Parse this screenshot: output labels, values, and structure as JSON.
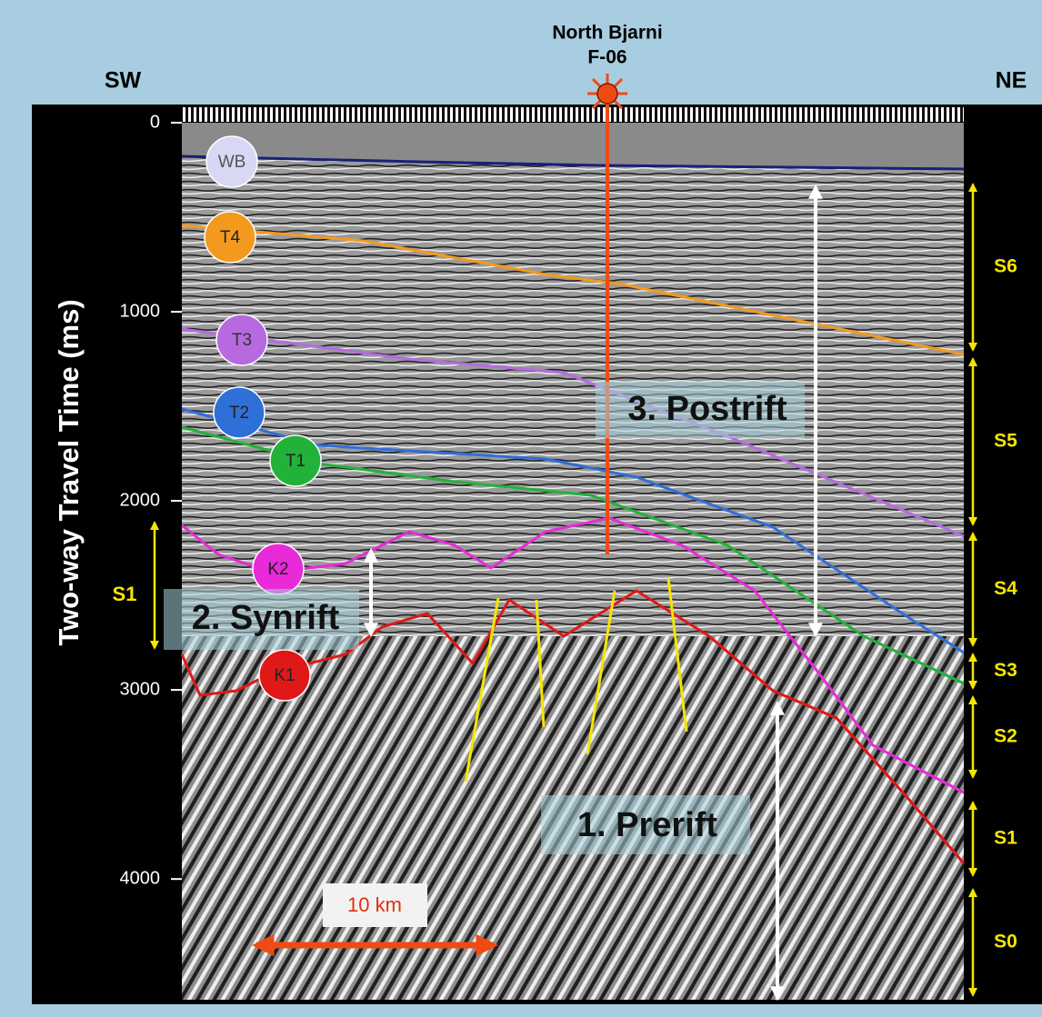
{
  "well": {
    "name": "North Bjarni",
    "id": "F-06"
  },
  "directions": {
    "left": "SW",
    "right": "NE"
  },
  "y_axis": {
    "label": "Two-way Travel Time (ms)",
    "ylim": [
      0,
      4600
    ],
    "ticks": [
      0,
      1000,
      2000,
      3000,
      4000
    ]
  },
  "horizons": [
    {
      "label": "WB",
      "color": "#1a1f7a"
    },
    {
      "label": "T4",
      "color": "#f39a1e"
    },
    {
      "label": "T3",
      "color": "#b76ae0"
    },
    {
      "label": "T2",
      "color": "#2f6fd8"
    },
    {
      "label": "T1",
      "color": "#22b23a"
    },
    {
      "label": "K2",
      "color": "#e82ad8"
    },
    {
      "label": "K1",
      "color": "#e01818"
    }
  ],
  "sequences": [
    "S6",
    "S5",
    "S4",
    "S3",
    "S2",
    "S1",
    "S0"
  ],
  "synrift_sequence": "S1",
  "packages": [
    "3. Postrift",
    "2. Synrift",
    "1. Prerift"
  ],
  "scale_bar": "10 km"
}
